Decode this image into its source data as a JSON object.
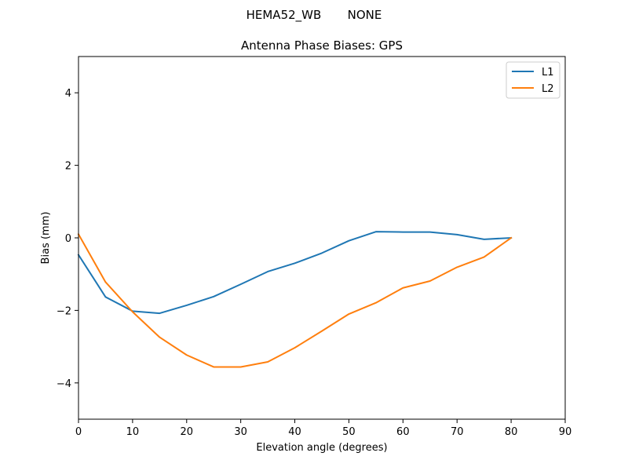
{
  "chart_data": {
    "type": "line",
    "suptitle": "HEMA52_WB       NONE",
    "title": "Antenna Phase Biases: GPS",
    "xlabel": "Elevation angle (degrees)",
    "ylabel": "Bias (mm)",
    "xlim": [
      0,
      90
    ],
    "ylim": [
      -5,
      5
    ],
    "xticks": [
      0,
      10,
      20,
      30,
      40,
      50,
      60,
      70,
      80,
      90
    ],
    "yticks": [
      -4,
      -2,
      0,
      2,
      4
    ],
    "grid": false,
    "legend_position": "top-right",
    "x": [
      0,
      5,
      10,
      15,
      20,
      25,
      30,
      35,
      40,
      45,
      50,
      55,
      60,
      65,
      70,
      75,
      80
    ],
    "series": [
      {
        "name": "L1",
        "color": "#1f77b4",
        "values": [
          -0.47,
          -1.63,
          -2.02,
          -2.08,
          -1.86,
          -1.62,
          -1.28,
          -0.93,
          -0.7,
          -0.42,
          -0.08,
          0.17,
          0.16,
          0.16,
          0.09,
          -0.04,
          0.0
        ]
      },
      {
        "name": "L2",
        "color": "#ff7f0e",
        "values": [
          0.1,
          -1.22,
          -2.04,
          -2.74,
          -3.23,
          -3.56,
          -3.56,
          -3.42,
          -3.03,
          -2.57,
          -2.1,
          -1.79,
          -1.38,
          -1.19,
          -0.81,
          -0.53,
          0.0
        ]
      }
    ]
  }
}
